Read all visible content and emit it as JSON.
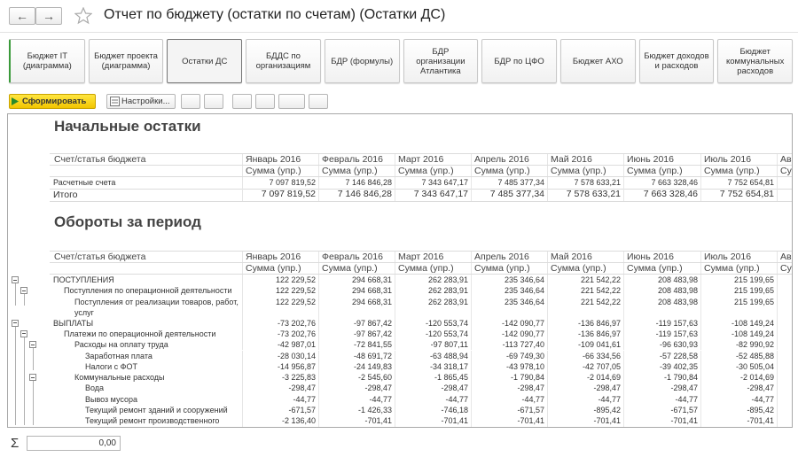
{
  "header": {
    "title": "Отчет по бюджету (остатки по счетам) (Остатки ДС)"
  },
  "tabs": [
    "Бюджет IT (диаграмма)",
    "Бюджет проекта (диаграмма)",
    "Остатки ДС",
    "БДДС по организациям",
    "БДР (формулы)",
    "БДР организации Атлантика",
    "БДР по ЦФО",
    "Бюджет АХО",
    "Бюджет доходов и расходов",
    "Бюджет коммунальных расходов"
  ],
  "active_tab": 2,
  "toolbar": {
    "generate": "Сформировать",
    "settings": "Настройки..."
  },
  "report": {
    "sections": [
      {
        "title": "Начальные остатки",
        "column_header": "Счет/статья бюджета",
        "months": [
          "Январь 2016",
          "Февраль 2016",
          "Март 2016",
          "Апрель 2016",
          "Май 2016",
          "Июнь 2016",
          "Июль 2016",
          "Авгу"
        ],
        "subheader": [
          "Сумма (упр.)",
          "Сумма (упр.)",
          "Сумма (упр.)",
          "Сумма (упр.)",
          "Сумма (упр.)",
          "Сумма (упр.)",
          "Сумма (упр.)",
          "Сумм"
        ],
        "rows": [
          {
            "label": "Расчетные счета",
            "level": 0,
            "values": [
              "7 097 819,52",
              "7 146 846,28",
              "7 343 647,17",
              "7 485 377,34",
              "7 578 633,21",
              "7 663 328,46",
              "7 752 654,81"
            ]
          },
          {
            "label": "Итого",
            "level": 0,
            "total": true,
            "values": [
              "7 097 819,52",
              "7 146 846,28",
              "7 343 647,17",
              "7 485 377,34",
              "7 578 633,21",
              "7 663 328,46",
              "7 752 654,81"
            ]
          }
        ]
      },
      {
        "title": "Обороты за период",
        "column_header": "Счет/статья бюджета",
        "months": [
          "Январь 2016",
          "Февраль 2016",
          "Март 2016",
          "Апрель 2016",
          "Май 2016",
          "Июнь 2016",
          "Июль 2016",
          "Авгу"
        ],
        "subheader": [
          "Сумма (упр.)",
          "Сумма (упр.)",
          "Сумма (упр.)",
          "Сумма (упр.)",
          "Сумма (упр.)",
          "Сумма (упр.)",
          "Сумма (упр.)",
          "Сумм"
        ],
        "rows": [
          {
            "label": "ПОСТУПЛЕНИЯ",
            "level": 0,
            "values": [
              "122 229,52",
              "294 668,31",
              "262 283,91",
              "235 346,64",
              "221 542,22",
              "208 483,98",
              "215 199,65"
            ]
          },
          {
            "label": "Поступления по операционной деятельности",
            "level": 1,
            "values": [
              "122 229,52",
              "294 668,31",
              "262 283,91",
              "235 346,64",
              "221 542,22",
              "208 483,98",
              "215 199,65"
            ]
          },
          {
            "label": "Поступления от реализации товаров, работ, услуг",
            "level": 2,
            "values": [
              "122 229,52",
              "294 668,31",
              "262 283,91",
              "235 346,64",
              "221 542,22",
              "208 483,98",
              "215 199,65"
            ]
          },
          {
            "label": "ВЫПЛАТЫ",
            "level": 0,
            "values": [
              "-73 202,76",
              "-97 867,42",
              "-120 553,74",
              "-142 090,77",
              "-136 846,97",
              "-119 157,63",
              "-108 149,24"
            ]
          },
          {
            "label": "Платежи по операционной деятельности",
            "level": 1,
            "values": [
              "-73 202,76",
              "-97 867,42",
              "-120 553,74",
              "-142 090,77",
              "-136 846,97",
              "-119 157,63",
              "-108 149,24"
            ]
          },
          {
            "label": "Расходы на оплату труда",
            "level": 2,
            "values": [
              "-42 987,01",
              "-72 841,55",
              "-97 807,11",
              "-113 727,40",
              "-109 041,61",
              "-96 630,93",
              "-82 990,92"
            ]
          },
          {
            "label": "Заработная плата",
            "level": 3,
            "values": [
              "-28 030,14",
              "-48 691,72",
              "-63 488,94",
              "-69 749,30",
              "-66 334,56",
              "-57 228,58",
              "-52 485,88"
            ]
          },
          {
            "label": "Налоги с ФОТ",
            "level": 3,
            "values": [
              "-14 956,87",
              "-24 149,83",
              "-34 318,17",
              "-43 978,10",
              "-42 707,05",
              "-39 402,35",
              "-30 505,04"
            ]
          },
          {
            "label": "Коммунальные расходы",
            "level": 2,
            "values": [
              "-3 225,83",
              "-2 545,60",
              "-1 865,45",
              "-1 790,84",
              "-2 014,69",
              "-1 790,84",
              "-2 014,69"
            ]
          },
          {
            "label": "Вода",
            "level": 3,
            "values": [
              "-298,47",
              "-298,47",
              "-298,47",
              "-298,47",
              "-298,47",
              "-298,47",
              "-298,47"
            ]
          },
          {
            "label": "Вывоз мусора",
            "level": 3,
            "values": [
              "-44,77",
              "-44,77",
              "-44,77",
              "-44,77",
              "-44,77",
              "-44,77",
              "-44,77"
            ]
          },
          {
            "label": "Текущий ремонт зданий и сооружений",
            "level": 3,
            "values": [
              "-671,57",
              "-1 426,33",
              "-746,18",
              "-671,57",
              "-895,42",
              "-671,57",
              "-895,42"
            ]
          },
          {
            "label": "Текущий ремонт производственного",
            "level": 3,
            "values": [
              "-2 136,40",
              "-701,41",
              "-701,41",
              "-701,41",
              "-701,41",
              "-701,41",
              "-701,41"
            ]
          }
        ]
      }
    ]
  },
  "footer": {
    "sum_symbol": "Σ",
    "sum_value": "0,00"
  }
}
